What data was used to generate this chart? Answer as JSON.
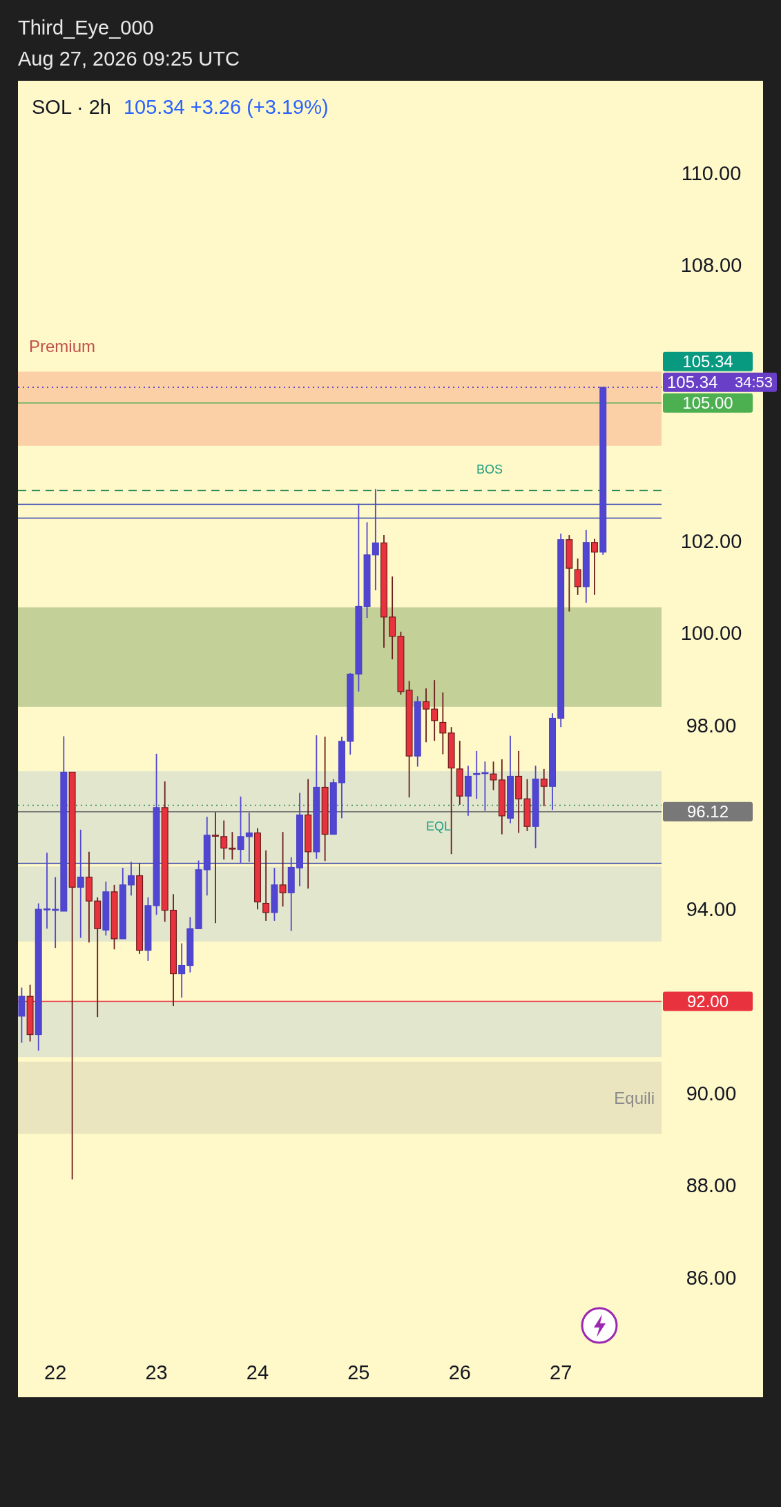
{
  "chart_data": {
    "type": "candlestick",
    "title": "SOL · 2h",
    "annotations": [
      "Third_Eye_000",
      "Aug 27, 2026 09:25 UTC",
      "105.34 +3.26 (+3.19%)",
      "34:53",
      "BOS",
      "EQL"
    ],
    "x": [
      21.667,
      21.75,
      21.833,
      21.917,
      22,
      22.083,
      22.167,
      22.25,
      22.333,
      22.417,
      22.5,
      22.583,
      22.667,
      22.75,
      22.833,
      22.917,
      23,
      23.083,
      23.167,
      23.25,
      23.333,
      23.417,
      23.5,
      23.583,
      23.667,
      23.75,
      23.833,
      23.917,
      24,
      24.083,
      24.167,
      24.25,
      24.333,
      24.417,
      24.5,
      24.583,
      24.667,
      24.75,
      24.833,
      24.917,
      25,
      25.083,
      25.167,
      25.25,
      25.333,
      25.417,
      25.5,
      25.583,
      25.667,
      25.75,
      25.833,
      25.917,
      26,
      26.083,
      26.167,
      26.25,
      26.333,
      26.417,
      26.5,
      26.583,
      26.667,
      26.75,
      26.833,
      26.917,
      27,
      27.083,
      27.167,
      27.25,
      27.333,
      27.417
    ],
    "ohlc": [
      [
        91.68,
        92.3,
        91.1,
        92.11
      ],
      [
        92.11,
        92.36,
        91.13,
        91.28
      ],
      [
        91.28,
        94.13,
        90.93,
        94.0
      ],
      [
        94.0,
        95.23,
        93.58,
        94.01
      ],
      [
        93.99,
        94.7,
        93.16,
        94.0
      ],
      [
        93.96,
        97.76,
        93.96,
        96.98
      ],
      [
        96.98,
        96.98,
        88.13,
        94.48
      ],
      [
        94.48,
        95.73,
        93.38,
        94.7
      ],
      [
        94.7,
        95.25,
        93.28,
        94.18
      ],
      [
        94.18,
        94.26,
        91.66,
        93.58
      ],
      [
        93.55,
        94.6,
        93.43,
        94.38
      ],
      [
        94.38,
        94.53,
        93.13,
        93.36
      ],
      [
        93.36,
        94.9,
        93.36,
        94.53
      ],
      [
        94.53,
        95.03,
        94.3,
        94.73
      ],
      [
        94.73,
        95.0,
        93.03,
        93.11
      ],
      [
        93.11,
        94.26,
        92.88,
        94.08
      ],
      [
        94.08,
        97.38,
        93.88,
        96.21
      ],
      [
        96.21,
        96.78,
        93.73,
        93.98
      ],
      [
        93.98,
        94.33,
        91.9,
        92.6
      ],
      [
        92.6,
        93.26,
        92.08,
        92.78
      ],
      [
        92.78,
        93.83,
        92.63,
        93.58
      ],
      [
        93.58,
        95.06,
        93.58,
        94.86
      ],
      [
        94.86,
        96.01,
        94.3,
        95.61
      ],
      [
        95.61,
        96.11,
        93.7,
        95.6
      ],
      [
        95.58,
        95.93,
        95.08,
        95.33
      ],
      [
        95.33,
        95.68,
        95.08,
        95.32
      ],
      [
        95.3,
        96.45,
        95.0,
        95.58
      ],
      [
        95.58,
        96.1,
        95.03,
        95.66
      ],
      [
        95.66,
        95.76,
        94.0,
        94.16
      ],
      [
        94.13,
        95.28,
        93.75,
        93.93
      ],
      [
        93.93,
        94.9,
        93.75,
        94.53
      ],
      [
        94.53,
        95.68,
        94.06,
        94.36
      ],
      [
        94.36,
        95.13,
        93.53,
        94.91
      ],
      [
        94.9,
        96.53,
        94.5,
        96.05
      ],
      [
        96.05,
        96.83,
        94.45,
        95.25
      ],
      [
        95.25,
        97.78,
        95.1,
        96.65
      ],
      [
        96.65,
        97.75,
        95.05,
        95.63
      ],
      [
        95.63,
        96.83,
        95.63,
        96.75
      ],
      [
        96.75,
        97.75,
        95.98,
        97.65
      ],
      [
        97.65,
        99.13,
        97.36,
        99.11
      ],
      [
        99.11,
        102.81,
        98.73,
        100.58
      ],
      [
        100.58,
        102.41,
        100.33,
        101.7
      ],
      [
        101.7,
        103.13,
        100.93,
        101.96
      ],
      [
        101.96,
        102.13,
        99.68,
        100.35
      ],
      [
        100.35,
        101.23,
        99.43,
        99.93
      ],
      [
        99.93,
        100.03,
        98.66,
        98.73
      ],
      [
        98.76,
        98.96,
        96.43,
        97.33
      ],
      [
        97.33,
        98.63,
        97.1,
        98.51
      ],
      [
        98.51,
        98.8,
        97.63,
        98.35
      ],
      [
        98.35,
        98.98,
        97.66,
        98.1
      ],
      [
        98.06,
        98.71,
        97.37,
        97.83
      ],
      [
        97.83,
        97.96,
        95.2,
        97.07
      ],
      [
        97.05,
        97.66,
        96.27,
        96.46
      ],
      [
        96.46,
        97.12,
        96.03,
        96.89
      ],
      [
        96.94,
        97.44,
        96.4,
        96.95
      ],
      [
        96.96,
        97.21,
        96.14,
        96.97
      ],
      [
        96.94,
        97.21,
        96.59,
        96.81
      ],
      [
        96.81,
        97.26,
        95.63,
        96.03
      ],
      [
        95.98,
        97.77,
        95.87,
        96.89
      ],
      [
        96.89,
        97.44,
        95.66,
        96.4
      ],
      [
        96.4,
        96.83,
        95.7,
        95.8
      ],
      [
        95.8,
        97.12,
        95.33,
        96.83
      ],
      [
        96.83,
        97.05,
        96.24,
        96.67
      ],
      [
        96.67,
        98.26,
        96.16,
        98.15
      ],
      [
        98.15,
        102.16,
        97.96,
        102.03
      ],
      [
        102.03,
        102.13,
        100.47,
        101.41
      ],
      [
        101.38,
        101.62,
        100.83,
        101.01
      ],
      [
        101.01,
        102.24,
        100.66,
        101.97
      ],
      [
        101.97,
        102.05,
        100.83,
        101.76
      ],
      [
        101.76,
        105.34,
        101.7,
        105.34
      ]
    ],
    "xlim": [
      21.63,
      29.0
    ],
    "xticks": [
      22,
      23,
      24,
      25,
      26,
      27
    ],
    "ylim": [
      83.4,
      112
    ],
    "yticks": [
      {
        "value": 86,
        "label": "86.00"
      },
      {
        "value": 88,
        "label": "88.00"
      },
      {
        "value": 90,
        "label": "90.00"
      },
      {
        "value": 94,
        "label": "94.00"
      },
      {
        "value": 98,
        "label": "98.00"
      },
      {
        "value": 100,
        "label": "100.00"
      },
      {
        "value": 102,
        "label": "102.00"
      },
      {
        "value": 108,
        "label": "108.00"
      },
      {
        "value": 110,
        "label": "110.00"
      }
    ],
    "bands": [
      {
        "axis": "y",
        "from": 104.07,
        "to": 105.68,
        "label": "Premium",
        "color": "#fbc9a0"
      },
      {
        "axis": "y",
        "from": 98.4,
        "to": 100.56,
        "color": "#b9c98e"
      },
      {
        "axis": "y",
        "from": 95.03,
        "to": 97.0,
        "color": "#dde3cd"
      },
      {
        "axis": "y",
        "from": 93.3,
        "to": 94.93,
        "color": "#dde3cd"
      },
      {
        "axis": "y",
        "from": 90.79,
        "to": 92.0,
        "color": "#dde3cd"
      },
      {
        "axis": "y",
        "from": 89.12,
        "to": 90.69,
        "label": "Equili",
        "color": "#e8e2bd"
      }
    ],
    "ref_lines": [
      {
        "axis": "y",
        "value": 105.34,
        "label": "105.34",
        "color": "#089981",
        "line_style": "dotted"
      },
      {
        "axis": "y",
        "value": 105.34,
        "label": "105.34",
        "color": "#6a3fc8",
        "line_style": "dotted"
      },
      {
        "axis": "y",
        "value": 105.0,
        "label": "105.00",
        "color": "#4caf50",
        "line_style": "solid"
      },
      {
        "axis": "y",
        "value": 103.1,
        "color": "#2e8b57",
        "line_style": "dashed"
      },
      {
        "axis": "y",
        "value": 102.8,
        "color": "#2c3fb0",
        "line_style": "solid"
      },
      {
        "axis": "y",
        "value": 102.5,
        "color": "#2c3fb0",
        "line_style": "solid"
      },
      {
        "axis": "y",
        "value": 96.26,
        "color": "#2e8b57",
        "line_style": "dotted"
      },
      {
        "axis": "y",
        "value": 96.12,
        "label": "96.12",
        "color": "#787878",
        "line_style": "solid"
      },
      {
        "axis": "y",
        "value": 95.0,
        "color": "#2c3fb0",
        "line_style": "solid"
      },
      {
        "axis": "y",
        "value": 92.0,
        "label": "92.00",
        "color": "#e8323e",
        "line_style": "solid"
      }
    ]
  }
}
